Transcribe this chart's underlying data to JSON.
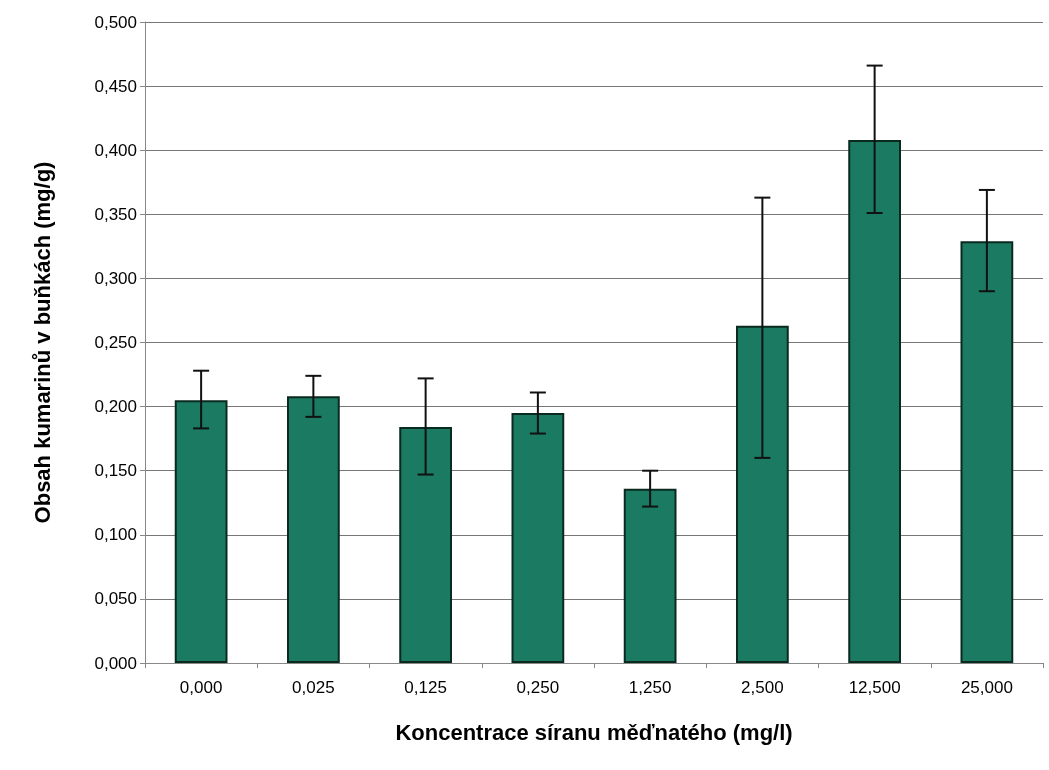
{
  "chart_data": {
    "type": "bar",
    "xlabel": "Koncentrace síranu měďnatého (mg/l)",
    "ylabel": "Obsah kumarinů v buňkách (mg/g)",
    "categories": [
      "0,000",
      "0,025",
      "0,125",
      "0,250",
      "1,250",
      "2,500",
      "12,500",
      "25,000"
    ],
    "values": [
      0.205,
      0.208,
      0.184,
      0.195,
      0.136,
      0.263,
      0.408,
      0.329
    ],
    "errors": [
      [
        0.183,
        0.228
      ],
      [
        0.192,
        0.224
      ],
      [
        0.147,
        0.222
      ],
      [
        0.179,
        0.211
      ],
      [
        0.122,
        0.15
      ],
      [
        0.16,
        0.363
      ],
      [
        0.351,
        0.466
      ],
      [
        0.29,
        0.369
      ]
    ],
    "color": "#1b7a62",
    "ylim": [
      0,
      0.5
    ],
    "yticks": [
      {
        "value": 0,
        "label": "0,000"
      },
      {
        "value": 0.05,
        "label": "0,050"
      },
      {
        "value": 0.1,
        "label": "0,100"
      },
      {
        "value": 0.15,
        "label": "0,150"
      },
      {
        "value": 0.2,
        "label": "0,200"
      },
      {
        "value": 0.25,
        "label": "0,250"
      },
      {
        "value": 0.3,
        "label": "0,300"
      },
      {
        "value": 0.35,
        "label": "0,350"
      },
      {
        "value": 0.4,
        "label": "0,400"
      },
      {
        "value": 0.45,
        "label": "0,450"
      },
      {
        "value": 0.5,
        "label": "0,500"
      }
    ],
    "grid": "y"
  }
}
